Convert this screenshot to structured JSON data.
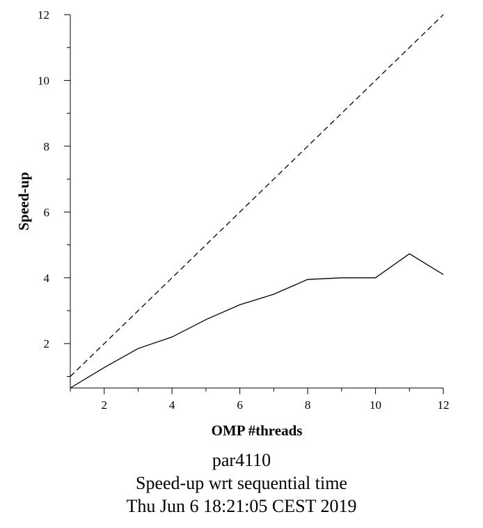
{
  "chart_data": {
    "type": "line",
    "xlabel": "OMP #threads",
    "ylabel": "Speed-up",
    "xlim": [
      1,
      12
    ],
    "ylim": [
      0.65,
      12
    ],
    "xticks": [
      2,
      4,
      6,
      8,
      10,
      12
    ],
    "yticks": [
      2,
      4,
      6,
      8,
      10,
      12
    ],
    "grid": false,
    "series": [
      {
        "style": "solid",
        "x": [
          1,
          2,
          3,
          4,
          5,
          6,
          7,
          8,
          9,
          10,
          11,
          12
        ],
        "y": [
          0.65,
          1.27,
          1.85,
          2.2,
          2.73,
          3.18,
          3.5,
          3.95,
          4.0,
          4.0,
          4.73,
          4.1
        ]
      },
      {
        "style": "dashed",
        "x": [
          1,
          12
        ],
        "y": [
          1,
          12
        ]
      }
    ]
  },
  "caption": {
    "line1": "par4110",
    "line2": "Speed-up wrt sequential time",
    "line3": "Thu Jun  6 18:21:05 CEST 2019"
  }
}
